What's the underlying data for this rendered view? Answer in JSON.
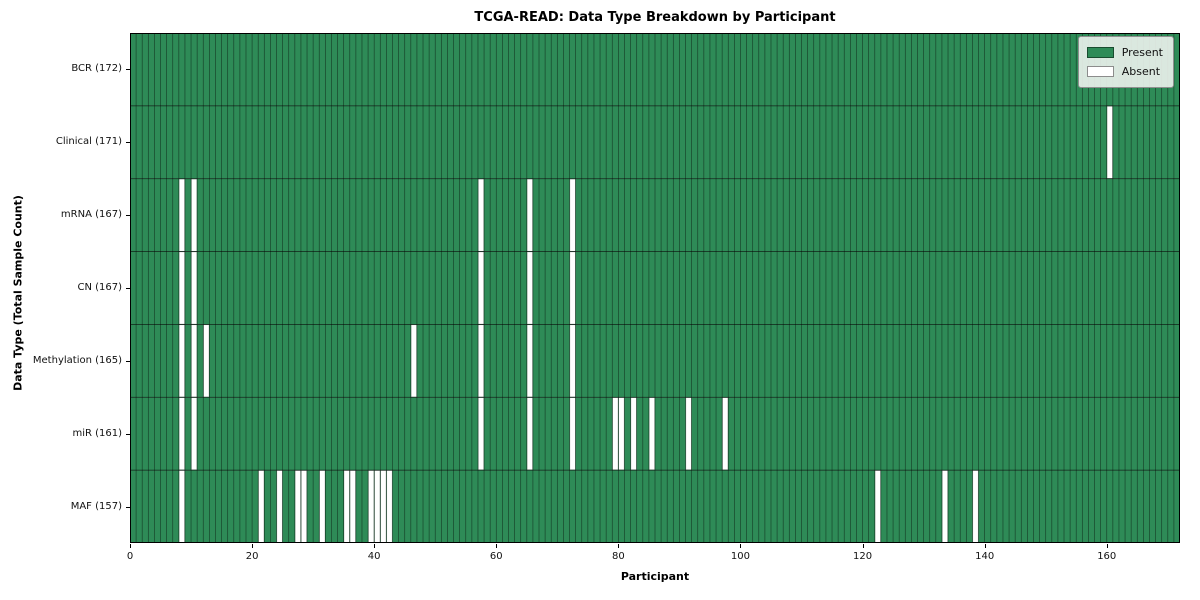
{
  "figure": {
    "title": "TCGA-READ: Data Type Breakdown by Participant",
    "xlabel": "Participant",
    "ylabel": "Data Type (Total Sample Count)"
  },
  "legend": {
    "items": [
      {
        "label": "Present",
        "color": "#2E8B57"
      },
      {
        "label": "Absent",
        "color": "#FFFFFF"
      }
    ]
  },
  "chart_data": {
    "type": "heatmap",
    "title": "TCGA-READ: Data Type Breakdown by Participant",
    "xlabel": "Participant",
    "ylabel": "Data Type (Total Sample Count)",
    "n_participants": 172,
    "xlim": [
      0,
      172
    ],
    "x_ticks": [
      0,
      20,
      40,
      60,
      80,
      100,
      120,
      140,
      160
    ],
    "legend_position": "upper right",
    "grid": "cell-borders",
    "colors": {
      "present": "#2E8B57",
      "absent": "#FFFFFF",
      "cell_border": "rgba(0,0,0,0.5)"
    },
    "rows": [
      {
        "label": "BCR",
        "count": 172,
        "absent_participants": []
      },
      {
        "label": "Clinical",
        "count": 171,
        "absent_participants": [
          160
        ]
      },
      {
        "label": "mRNA",
        "count": 167,
        "absent_participants": [
          8,
          10,
          57,
          65,
          72
        ]
      },
      {
        "label": "CN",
        "count": 167,
        "absent_participants": [
          8,
          10,
          57,
          65,
          72
        ]
      },
      {
        "label": "Methylation",
        "count": 165,
        "absent_participants": [
          8,
          10,
          12,
          46,
          57,
          65,
          72
        ]
      },
      {
        "label": "miR",
        "count": 161,
        "absent_participants": [
          8,
          10,
          57,
          65,
          72,
          79,
          80,
          82,
          85,
          91,
          97
        ]
      },
      {
        "label": "MAF",
        "count": 157,
        "absent_participants": [
          8,
          21,
          24,
          27,
          28,
          31,
          35,
          36,
          39,
          40,
          41,
          42,
          122,
          133,
          138
        ]
      }
    ]
  }
}
